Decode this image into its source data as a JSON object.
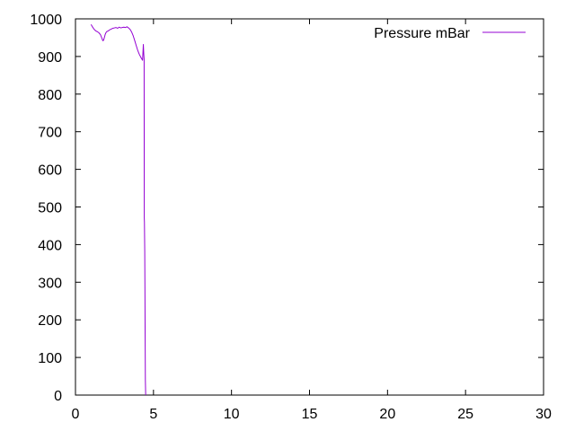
{
  "chart_data": {
    "type": "line",
    "xlim": [
      0,
      30
    ],
    "ylim": [
      0,
      1000
    ],
    "xticks": [
      0,
      5,
      10,
      15,
      20,
      25,
      30
    ],
    "yticks": [
      0,
      100,
      200,
      300,
      400,
      500,
      600,
      700,
      800,
      900,
      1000
    ],
    "xtick_labels": [
      "0",
      "5",
      "10",
      "15",
      "20",
      "25",
      "30"
    ],
    "ytick_labels": [
      "0",
      "100",
      "200",
      "300",
      "400",
      "500",
      "600",
      "700",
      "800",
      "900",
      "1000"
    ],
    "grid": false,
    "legend_position": "top-right",
    "series": [
      {
        "name": "Pressure mBar",
        "color": "#9400d3",
        "x": [
          1.0,
          1.1,
          1.2,
          1.3,
          1.4,
          1.5,
          1.6,
          1.7,
          1.75,
          1.8,
          1.85,
          1.9,
          1.95,
          2.0,
          2.1,
          2.2,
          2.3,
          2.4,
          2.5,
          2.6,
          2.7,
          2.8,
          2.9,
          3.0,
          3.1,
          3.2,
          3.3,
          3.4,
          3.5,
          3.6,
          3.7,
          3.8,
          3.9,
          4.0,
          4.1,
          4.2,
          4.3,
          4.35,
          4.38,
          4.4,
          4.41,
          4.42,
          4.43,
          4.44,
          4.45,
          4.46,
          4.47,
          4.48,
          4.5
        ],
        "y": [
          985,
          978,
          972,
          968,
          966,
          963,
          958,
          948,
          942,
          943,
          950,
          958,
          963,
          966,
          968,
          971,
          973,
          975,
          976,
          977,
          975,
          978,
          976,
          977,
          978,
          977,
          979,
          976,
          972,
          965,
          955,
          942,
          928,
          915,
          905,
          897,
          890,
          932,
          905,
          893,
          470,
          460,
          420,
          380,
          300,
          200,
          120,
          40,
          0
        ]
      }
    ]
  }
}
